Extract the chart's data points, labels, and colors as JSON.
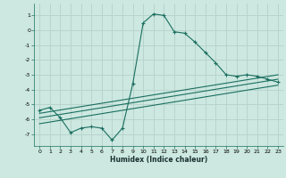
{
  "title": "",
  "xlabel": "Humidex (Indice chaleur)",
  "bg_color": "#cce8e0",
  "grid_color": "#b8d4cc",
  "line_color": "#1a6e60",
  "xlim": [
    -0.5,
    23.5
  ],
  "ylim": [
    -7.8,
    1.8
  ],
  "xticks": [
    0,
    1,
    2,
    3,
    4,
    5,
    6,
    7,
    8,
    9,
    10,
    11,
    12,
    13,
    14,
    15,
    16,
    17,
    18,
    19,
    20,
    21,
    22,
    23
  ],
  "yticks": [
    -7,
    -6,
    -5,
    -4,
    -3,
    -2,
    -1,
    0,
    1
  ],
  "curve1_x": [
    0,
    1,
    2,
    3,
    4,
    5,
    6,
    7,
    8,
    9,
    10,
    11,
    12,
    13,
    14,
    15,
    16,
    17,
    18,
    19,
    20,
    21,
    22,
    23
  ],
  "curve1_y": [
    -5.4,
    -5.2,
    -5.9,
    -6.9,
    -6.6,
    -6.5,
    -6.6,
    -7.4,
    -6.6,
    -3.6,
    0.5,
    1.1,
    1.0,
    -0.1,
    -0.2,
    -0.8,
    -1.5,
    -2.2,
    -3.0,
    -3.1,
    -3.0,
    -3.1,
    -3.3,
    -3.5
  ],
  "line2_x": [
    0,
    23
  ],
  "line2_y": [
    -5.9,
    -3.3
  ],
  "line3_x": [
    0,
    23
  ],
  "line3_y": [
    -5.6,
    -3.0
  ],
  "line4_x": [
    0,
    23
  ],
  "line4_y": [
    -6.3,
    -3.7
  ]
}
